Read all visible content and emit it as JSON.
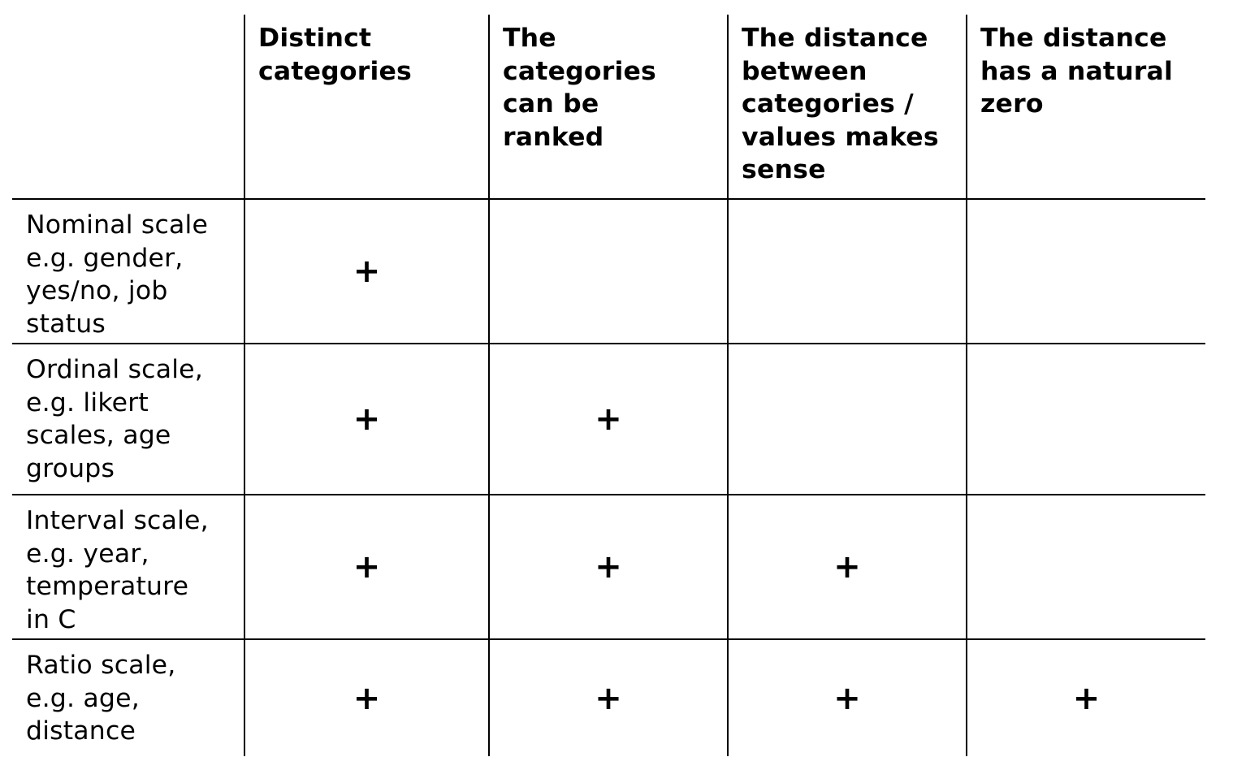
{
  "table": {
    "columns": [
      {
        "lines": [
          "Distinct",
          "categories"
        ]
      },
      {
        "lines": [
          "The",
          "categories",
          "can be",
          "ranked"
        ]
      },
      {
        "lines": [
          "The distance",
          "between",
          "categories /",
          "values makes",
          "sense"
        ]
      },
      {
        "lines": [
          "The distance",
          "has a natural",
          "zero"
        ]
      }
    ],
    "rows": [
      {
        "label_lines": [
          "Nominal scale",
          "e.g. gender,",
          "yes/no, job",
          "status"
        ],
        "cells": [
          "+",
          "",
          "",
          ""
        ]
      },
      {
        "label_lines": [
          "Ordinal scale,",
          "e.g. likert",
          "scales, age",
          "groups"
        ],
        "cells": [
          "+",
          "+",
          "",
          ""
        ]
      },
      {
        "label_lines": [
          "Interval scale,",
          "e.g. year,",
          "temperature",
          "in C"
        ],
        "cells": [
          "+",
          "+",
          "+",
          ""
        ]
      },
      {
        "label_lines": [
          "Ratio scale,",
          "e.g. age,",
          "distance"
        ],
        "cells": [
          "+",
          "+",
          "+",
          "+"
        ]
      }
    ]
  }
}
